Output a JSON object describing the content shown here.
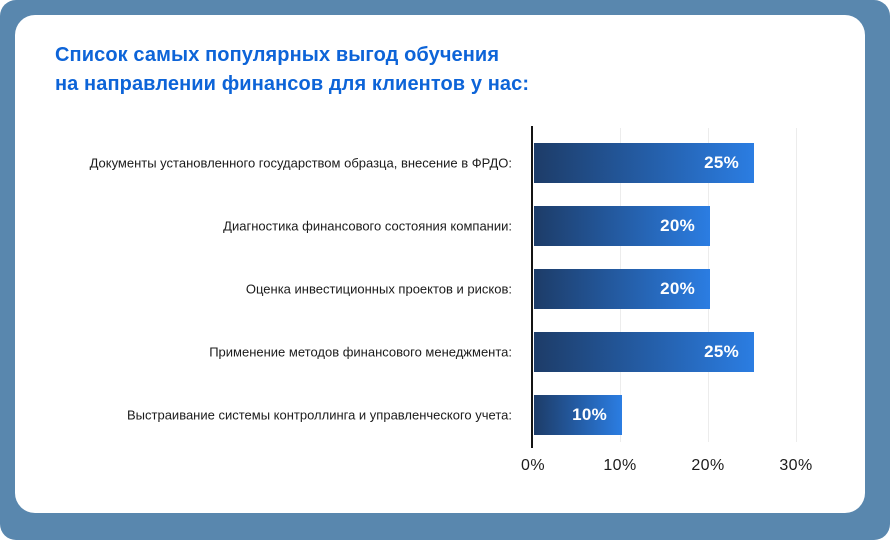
{
  "frame": {
    "background": "#5987ae"
  },
  "card": {
    "background": "#ffffff"
  },
  "title": {
    "line1": "Список самых популярных выгод обучения",
    "line2": "на направлении финансов для клиентов у нас:",
    "color": "#0d64d8"
  },
  "chart_data": {
    "type": "bar",
    "orientation": "horizontal",
    "categories": [
      "Документы установленного государством образца, внесение в ФРДО:",
      "Диагностика финансового состояния компании:",
      "Оценка инвестиционных проектов и рисков:",
      "Применение методов финансового менеджмента:",
      "Выстраивание системы контроллинга и управленческого учета:"
    ],
    "values": [
      25,
      20,
      20,
      25,
      10
    ],
    "value_labels": [
      "25%",
      "20%",
      "20%",
      "25%",
      "10%"
    ],
    "x_ticks": [
      "0%",
      "10%",
      "20%",
      "30%"
    ],
    "xlim": [
      0,
      30
    ],
    "grid": "vertical-light",
    "gridline_color": "#ececec",
    "axis_color": "#141414",
    "bar_gradient": [
      "#1d3c68",
      "#2b7de2"
    ],
    "value_label_color": "#ffffff",
    "legend": "none",
    "title": "Список самых популярных выгод обучения на направлении финансов для клиентов у нас:"
  }
}
